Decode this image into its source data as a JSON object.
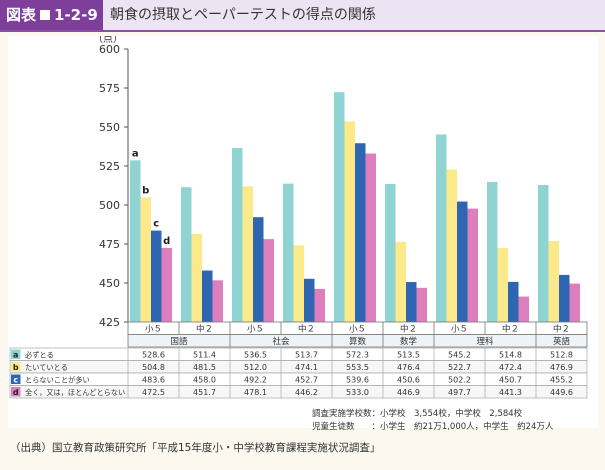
{
  "header": {
    "fig_label": "図表",
    "fig_number": "1-2-9",
    "title": "朝食の摂取とペーパーテストの得点の関係"
  },
  "chart_data": {
    "type": "bar",
    "title": "朝食の摂取とペーパーテストの得点の関係",
    "ylabel": "（点）",
    "ylim": [
      425,
      600
    ],
    "yticks": [
      425,
      450,
      475,
      500,
      525,
      550,
      575,
      600
    ],
    "categories": [
      "小５",
      "中２",
      "小５",
      "中２",
      "小５",
      "中２",
      "小５",
      "中２",
      "中２"
    ],
    "subjects": [
      {
        "name": "国語",
        "span": 2
      },
      {
        "name": "社会",
        "span": 2
      },
      {
        "name": "算数",
        "span": 1
      },
      {
        "name": "数学",
        "span": 1
      },
      {
        "name": "理科",
        "span": 2
      },
      {
        "name": "英語",
        "span": 1
      }
    ],
    "series": [
      {
        "key": "a",
        "name": "必ずとる",
        "color": "#8fd3d3",
        "values": [
          528.6,
          511.4,
          536.5,
          513.7,
          572.3,
          513.5,
          545.2,
          514.8,
          512.8
        ]
      },
      {
        "key": "b",
        "name": "たいていとる",
        "color": "#fbe98a",
        "values": [
          504.8,
          481.5,
          512.0,
          474.1,
          553.5,
          476.4,
          522.7,
          472.4,
          476.9
        ]
      },
      {
        "key": "c",
        "name": "とらないことが多い",
        "color": "#2f66b2",
        "values": [
          483.6,
          458.0,
          492.2,
          452.7,
          539.6,
          450.6,
          502.2,
          450.7,
          455.2
        ]
      },
      {
        "key": "d",
        "name": "全く，又は，ほとんどとらない",
        "color": "#dc7fbc",
        "values": [
          472.5,
          451.7,
          478.1,
          446.2,
          533.0,
          446.9,
          497.7,
          441.3,
          449.6
        ]
      }
    ],
    "annotations": [
      "a",
      "b",
      "c",
      "d"
    ],
    "grid": false,
    "legend": "table-below"
  },
  "notes": {
    "line1": "調査実施学校数：小学校　3,554校，中学校　2,584校",
    "line2": "児童生徒数　　：小学生　約21万1,000人，中学生　約24万人"
  },
  "source": "（出典）国立教育政策研究所「平成15年度小・中学校教育課程実施状況調査」"
}
